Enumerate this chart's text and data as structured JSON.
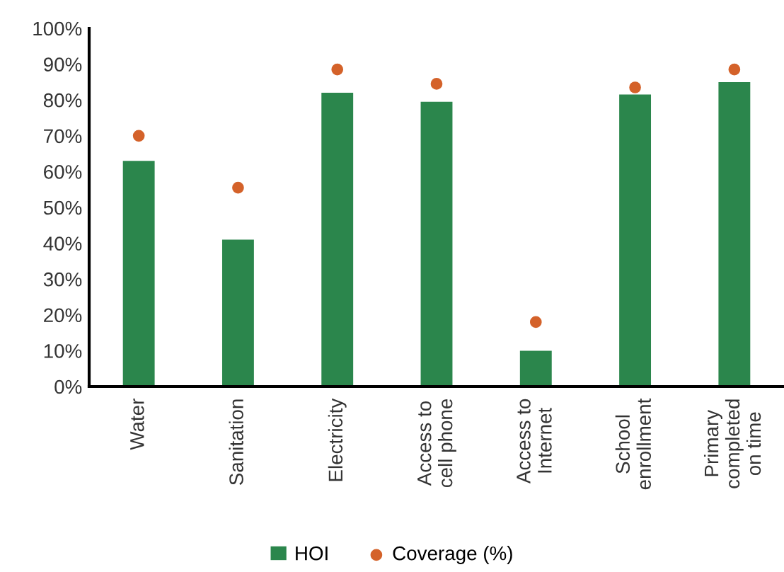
{
  "chart_data": {
    "type": "bar",
    "categories": [
      "Water",
      "Sanitation",
      "Electricity",
      "Access to\ncell phone",
      "Access to\nInternet",
      "School\nenrollment",
      "Primary\ncompleted\non time"
    ],
    "series": [
      {
        "name": "HOI",
        "color": "#2b864c",
        "values": [
          63,
          41,
          82,
          79.5,
          10,
          81.5,
          85
        ]
      },
      {
        "name": "Coverage (%)",
        "type": "scatter",
        "color": "#d4622a",
        "marker": "circle",
        "values": [
          70,
          55.5,
          88.5,
          84.5,
          18,
          83.5,
          88.5
        ]
      }
    ],
    "ylim": [
      0,
      100
    ],
    "yticks": [
      {
        "value": 0,
        "label": "0%"
      },
      {
        "value": 10,
        "label": "10%"
      },
      {
        "value": 20,
        "label": "20%"
      },
      {
        "value": 30,
        "label": "30%"
      },
      {
        "value": 40,
        "label": "40%"
      },
      {
        "value": 50,
        "label": "50%"
      },
      {
        "value": 60,
        "label": "60%"
      },
      {
        "value": 70,
        "label": "70%"
      },
      {
        "value": 80,
        "label": "80%"
      },
      {
        "value": 90,
        "label": "90%"
      },
      {
        "value": 100,
        "label": "100%"
      }
    ],
    "grid": false,
    "legend": "bottom"
  }
}
